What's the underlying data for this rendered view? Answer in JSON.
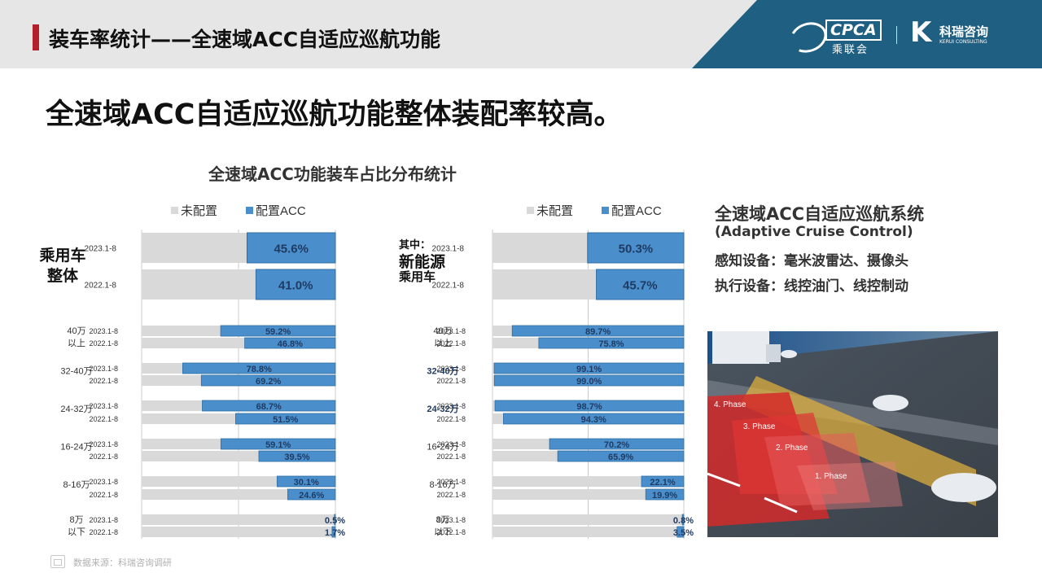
{
  "header": {
    "title": "装车率统计——全速域ACC自适应巡航功能",
    "logo_cpca_text": "CPCA",
    "logo_cpca_sub": "乘联会",
    "logo_kerui_name": "科瑞咨询",
    "logo_kerui_en": "KERUI CONSULTING"
  },
  "headline": "全速域ACC自适应巡航功能整体装配率较高。",
  "chart_title": "全速域ACC功能装车占比分布统计",
  "chart_data": [
    {
      "type": "bar",
      "stacked": true,
      "orientation": "horizontal",
      "legend": [
        "未配置",
        "配置ACC"
      ],
      "colors": {
        "unconfigured": "#d9d9d9",
        "acc": "#4a8fcb",
        "acc_border": "#2e6da4",
        "label": "#1f3b63"
      },
      "overall": {
        "label_lines": [
          "乘用车",
          "整体"
        ],
        "prefix": "",
        "rows": [
          {
            "period": "2023.1-8",
            "acc": 45.6,
            "label": "45.6%"
          },
          {
            "period": "2022.1-8",
            "acc": 41.0,
            "label": "41.0%"
          }
        ]
      },
      "segments": [
        {
          "lines": [
            "40万",
            "以上"
          ],
          "rows": [
            {
              "period": "2023.1-8",
              "acc": 59.2,
              "label": "59.2%"
            },
            {
              "period": "2022.1-8",
              "acc": 46.8,
              "label": "46.8%"
            }
          ]
        },
        {
          "lines": [
            "32-40万"
          ],
          "rows": [
            {
              "period": "2023.1-8",
              "acc": 78.8,
              "label": "78.8%"
            },
            {
              "period": "2022.1-8",
              "acc": 69.2,
              "label": "69.2%"
            }
          ]
        },
        {
          "lines": [
            "24-32万"
          ],
          "rows": [
            {
              "period": "2023.1-8",
              "acc": 68.7,
              "label": "68.7%"
            },
            {
              "period": "2022.1-8",
              "acc": 51.5,
              "label": "51.5%"
            }
          ]
        },
        {
          "lines": [
            "16-24万"
          ],
          "rows": [
            {
              "period": "2023.1-8",
              "acc": 59.1,
              "label": "59.1%"
            },
            {
              "period": "2022.1-8",
              "acc": 39.5,
              "label": "39.5%"
            }
          ]
        },
        {
          "lines": [
            "8-16万"
          ],
          "rows": [
            {
              "period": "2023.1-8",
              "acc": 30.1,
              "label": "30.1%"
            },
            {
              "period": "2022.1-8",
              "acc": 24.6,
              "label": "24.6%"
            }
          ]
        },
        {
          "lines": [
            "8万",
            "以下"
          ],
          "rows": [
            {
              "period": "2023.1-8",
              "acc": 0.5,
              "label": "0.5%"
            },
            {
              "period": "2022.1-8",
              "acc": 1.7,
              "label": "1.7%"
            }
          ]
        }
      ]
    },
    {
      "type": "bar",
      "stacked": true,
      "orientation": "horizontal",
      "legend": [
        "未配置",
        "配置ACC"
      ],
      "colors": {
        "unconfigured": "#d9d9d9",
        "acc": "#4a8fcb",
        "acc_border": "#2e6da4",
        "label": "#1f3b63"
      },
      "overall": {
        "label_lines": [
          "新能源",
          "乘用车"
        ],
        "prefix": "其中：",
        "rows": [
          {
            "period": "2023.1-8",
            "acc": 50.3,
            "label": "50.3%"
          },
          {
            "period": "2022.1-8",
            "acc": 45.7,
            "label": "45.7%"
          }
        ]
      },
      "segments": [
        {
          "lines": [
            "40万",
            "以上"
          ],
          "rows": [
            {
              "period": "2023.1-8",
              "acc": 89.7,
              "label": "89.7%"
            },
            {
              "period": "2022.1-8",
              "acc": 75.8,
              "label": "75.8%"
            }
          ]
        },
        {
          "lines": [
            "32-40万"
          ],
          "highlight": true,
          "rows": [
            {
              "period": "2023.1-8",
              "acc": 99.1,
              "label": "99.1%"
            },
            {
              "period": "2022.1-8",
              "acc": 99.0,
              "label": "99.0%"
            }
          ]
        },
        {
          "lines": [
            "24-32万"
          ],
          "highlight": true,
          "rows": [
            {
              "period": "2023.1-8",
              "acc": 98.7,
              "label": "98.7%"
            },
            {
              "period": "2022.1-8",
              "acc": 94.3,
              "label": "94.3%"
            }
          ]
        },
        {
          "lines": [
            "16-24万"
          ],
          "rows": [
            {
              "period": "2023.1-8",
              "acc": 70.2,
              "label": "70.2%"
            },
            {
              "period": "2022.1-8",
              "acc": 65.9,
              "label": "65.9%"
            }
          ]
        },
        {
          "lines": [
            "8-16万"
          ],
          "rows": [
            {
              "period": "2023.1-8",
              "acc": 22.1,
              "label": "22.1%"
            },
            {
              "period": "2022.1-8",
              "acc": 19.9,
              "label": "19.9%"
            }
          ]
        },
        {
          "lines": [
            "8万",
            "以下"
          ],
          "rows": [
            {
              "period": "2023.1-8",
              "acc": 0.8,
              "label": "0.8%"
            },
            {
              "period": "2022.1-8",
              "acc": 3.5,
              "label": "3.5%"
            }
          ]
        }
      ]
    }
  ],
  "right_panel": {
    "title": "全速域ACC自适应巡航系统",
    "subtitle": "(Adaptive Cruise Control)",
    "sensing": "感知设备：毫米波雷达、摄像头",
    "actuation": "执行设备：线控油门、线控制动",
    "image_labels": [
      "4. Phase",
      "3. Phase",
      "2. Phase",
      "1. Phase"
    ]
  },
  "footer": {
    "source": "数据来源：科瑞咨询调研"
  }
}
